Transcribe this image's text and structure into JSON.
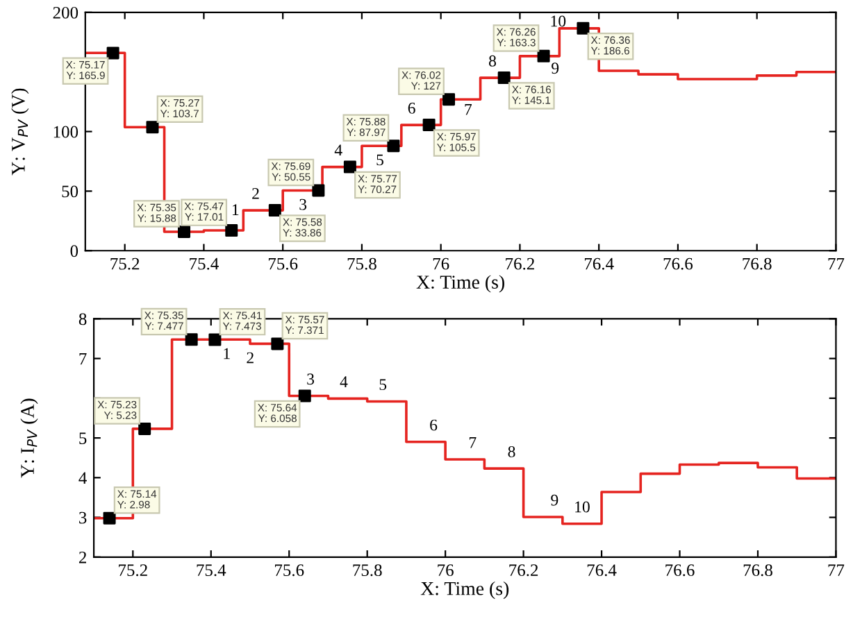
{
  "chart_data": [
    {
      "type": "step",
      "xlabel": "X: Time (s)",
      "ylabel": "Y: V$_{PV}$ (V)",
      "xlim": [
        75.1,
        77
      ],
      "ylim": [
        0,
        200
      ],
      "xticks": [
        75.2,
        75.4,
        75.6,
        75.8,
        76,
        76.2,
        76.4,
        76.6,
        76.8,
        77
      ],
      "yticks": [
        0,
        50,
        100,
        {
          "value": 150,
          "label": null
        },
        200
      ],
      "grid": false,
      "legend": false,
      "series": [
        {
          "color": "#e52420",
          "x": [
            75.1,
            75.2,
            75.3,
            75.4,
            75.5,
            75.6,
            75.7,
            75.8,
            75.9,
            76.0,
            76.1,
            76.2,
            76.3,
            76.4,
            76.5,
            76.6,
            76.8,
            76.9,
            77.0
          ],
          "values": [
            166,
            103.7,
            15.88,
            17.01,
            33.86,
            50.55,
            70.27,
            87.97,
            105.5,
            127,
            145.1,
            163.3,
            186.6,
            151,
            148,
            144,
            147,
            150,
            150
          ]
        },
        {
          "type": "scatter",
          "color": "#000000",
          "marker": "square",
          "x": [
            75.17,
            75.27,
            75.35,
            75.47,
            75.58,
            75.69,
            75.77,
            75.88,
            75.97,
            76.02,
            76.16,
            76.26,
            76.36
          ],
          "values": [
            165.9,
            103.7,
            15.88,
            17.01,
            33.86,
            50.55,
            70.27,
            87.97,
            105.5,
            127,
            145.1,
            163.3,
            186.6
          ]
        }
      ],
      "annotations": [
        {
          "text": "X: 75.17\nY: 165.9",
          "x": 75.17,
          "y": 165.9
        },
        {
          "text": "X: 75.27\nY: 103.7",
          "x": 75.27,
          "y": 103.7
        },
        {
          "text": "X: 75.35\nY: 15.88",
          "x": 75.35,
          "y": 15.88
        },
        {
          "text": "X: 75.47\nY: 17.01",
          "x": 75.47,
          "y": 17.01
        },
        {
          "text": "X: 75.58\nY: 33.86",
          "x": 75.58,
          "y": 33.86
        },
        {
          "text": "X: 75.69\nY: 50.55",
          "x": 75.69,
          "y": 50.55
        },
        {
          "text": "X: 75.77\nY: 70.27",
          "x": 75.77,
          "y": 70.27
        },
        {
          "text": "X: 75.88\nY: 87.97",
          "x": 75.88,
          "y": 87.97
        },
        {
          "text": "X: 75.97\nY: 105.5",
          "x": 75.97,
          "y": 105.5
        },
        {
          "text": "X: 76.02\nY: 127",
          "x": 76.02,
          "y": 127
        },
        {
          "text": "X: 76.16\nY: 145.1",
          "x": 76.16,
          "y": 145.1
        },
        {
          "text": "X: 76.26\nY: 163.3",
          "x": 76.26,
          "y": 163.3
        },
        {
          "text": "X: 76.36\nY: 186.6",
          "x": 76.36,
          "y": 186.6
        },
        {
          "text": "1",
          "x": 75.47,
          "y": 17.01
        },
        {
          "text": "2",
          "x": 75.58,
          "y": 33.86
        },
        {
          "text": "3",
          "x": 75.69,
          "y": 50.55
        },
        {
          "text": "4",
          "x": 75.77,
          "y": 70.27
        },
        {
          "text": "5",
          "x": 75.88,
          "y": 87.97
        },
        {
          "text": "6",
          "x": 75.97,
          "y": 105.5
        },
        {
          "text": "7",
          "x": 76.02,
          "y": 127
        },
        {
          "text": "8",
          "x": 76.16,
          "y": 145.1
        },
        {
          "text": "9",
          "x": 76.26,
          "y": 163.3
        },
        {
          "text": "10",
          "x": 76.36,
          "y": 186.6
        }
      ]
    },
    {
      "type": "step",
      "xlabel": "X: Time (s)",
      "ylabel": "Y: I$_{PV}$ (A)",
      "xlim": [
        75.1,
        77
      ],
      "ylim": [
        2,
        8
      ],
      "xticks": [
        75.2,
        75.4,
        75.6,
        75.8,
        76,
        76.2,
        76.4,
        76.6,
        76.8,
        77
      ],
      "yticks": [
        2,
        3,
        4,
        5,
        {
          "value": 6,
          "label": null
        },
        7,
        8
      ],
      "grid": false,
      "legend": false,
      "series": [
        {
          "color": "#e52420",
          "x": [
            75.1,
            75.2,
            75.3,
            75.5,
            75.6,
            75.7,
            75.8,
            75.9,
            76.0,
            76.1,
            76.2,
            76.3,
            76.4,
            76.5,
            76.6,
            76.7,
            76.8,
            76.9,
            77.0
          ],
          "values": [
            2.98,
            5.23,
            7.477,
            7.371,
            6.058,
            5.99,
            5.92,
            4.9,
            4.46,
            4.23,
            3.01,
            2.84,
            3.64,
            4.1,
            4.33,
            4.37,
            4.26,
            3.98,
            3.98
          ]
        },
        {
          "type": "scatter",
          "color": "#000000",
          "marker": "square",
          "x": [
            75.14,
            75.23,
            75.35,
            75.41,
            75.57,
            75.64
          ],
          "values": [
            2.98,
            5.23,
            7.477,
            7.473,
            7.371,
            6.058
          ]
        }
      ],
      "annotations": [
        {
          "text": "X: 75.14\nY: 2.98",
          "x": 75.14,
          "y": 2.98
        },
        {
          "text": "X: 75.23\nY: 5.23",
          "x": 75.23,
          "y": 5.23
        },
        {
          "text": "X: 75.35\nY: 7.477",
          "x": 75.35,
          "y": 7.477
        },
        {
          "text": "X: 75.41\nY: 7.473",
          "x": 75.41,
          "y": 7.473
        },
        {
          "text": "X: 75.57\nY: 7.371",
          "x": 75.57,
          "y": 7.371
        },
        {
          "text": "X: 75.64\nY: 6.058",
          "x": 75.64,
          "y": 6.058
        },
        {
          "text": "1",
          "x": 75.44,
          "y": 7.477
        },
        {
          "text": "2",
          "x": 75.54,
          "y": 7.371
        },
        {
          "text": "3",
          "x": 75.64,
          "y": 6.058
        },
        {
          "text": "4",
          "x": 75.74,
          "y": 5.99
        },
        {
          "text": "5",
          "x": 75.84,
          "y": 5.92
        },
        {
          "text": "6",
          "x": 75.94,
          "y": 4.9
        },
        {
          "text": "7",
          "x": 76.04,
          "y": 4.46
        },
        {
          "text": "8",
          "x": 76.14,
          "y": 4.23
        },
        {
          "text": "9",
          "x": 76.25,
          "y": 3.01
        },
        {
          "text": "10",
          "x": 76.35,
          "y": 2.84
        }
      ]
    }
  ]
}
